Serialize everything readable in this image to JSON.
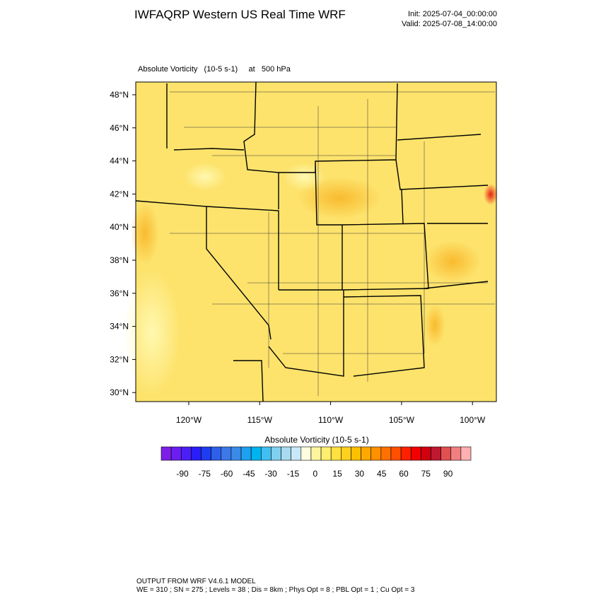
{
  "header": {
    "title": "IWFAQRP Western US Real Time WRF",
    "init": "Init: 2025-07-04_00:00:00",
    "valid": "Valid: 2025-07-08_14:00:00"
  },
  "plot": {
    "subtitle": "Absolute Vorticity   (10-5 s-1)     at   500 hPa"
  },
  "map": {
    "lat_labels": [
      "48°N",
      "46°N",
      "44°N",
      "42°N",
      "40°N",
      "38°N",
      "36°N",
      "34°N",
      "32°N",
      "30°N"
    ],
    "lon_labels": [
      "120°W",
      "115°W",
      "110°W",
      "105°W",
      "100°W"
    ]
  },
  "colorbar": {
    "title": "Absolute Vorticity  (10-5 s-1)",
    "labels": [
      -90,
      -75,
      -60,
      -45,
      -30,
      -15,
      0,
      15,
      30,
      45,
      60,
      75,
      90
    ],
    "colors": [
      "#7d1fe6",
      "#6a1ff0",
      "#4b1ff5",
      "#2a1ef8",
      "#1e3cf0",
      "#2e5fe8",
      "#3c78e8",
      "#3a8ae8",
      "#1ea0f0",
      "#00b4f0",
      "#40c0f0",
      "#80d0f0",
      "#a8daf0",
      "#c8e8f8",
      "#fffde0",
      "#fff5a0",
      "#ffee70",
      "#ffe040",
      "#ffd020",
      "#ffc000",
      "#ffa800",
      "#ff9000",
      "#ff7000",
      "#ff5000",
      "#ff2000",
      "#f00000",
      "#d00010",
      "#c01830",
      "#e05050",
      "#f08080",
      "#ffb0b0"
    ]
  },
  "footer": {
    "line1": "OUTPUT FROM WRF V4.6.1 MODEL",
    "line2": "WE = 310 ; SN = 275 ; Levels = 38 ; Dis = 8km ; Phys Opt = 8 ; PBL Opt = 1 ; Cu Opt = 3"
  }
}
